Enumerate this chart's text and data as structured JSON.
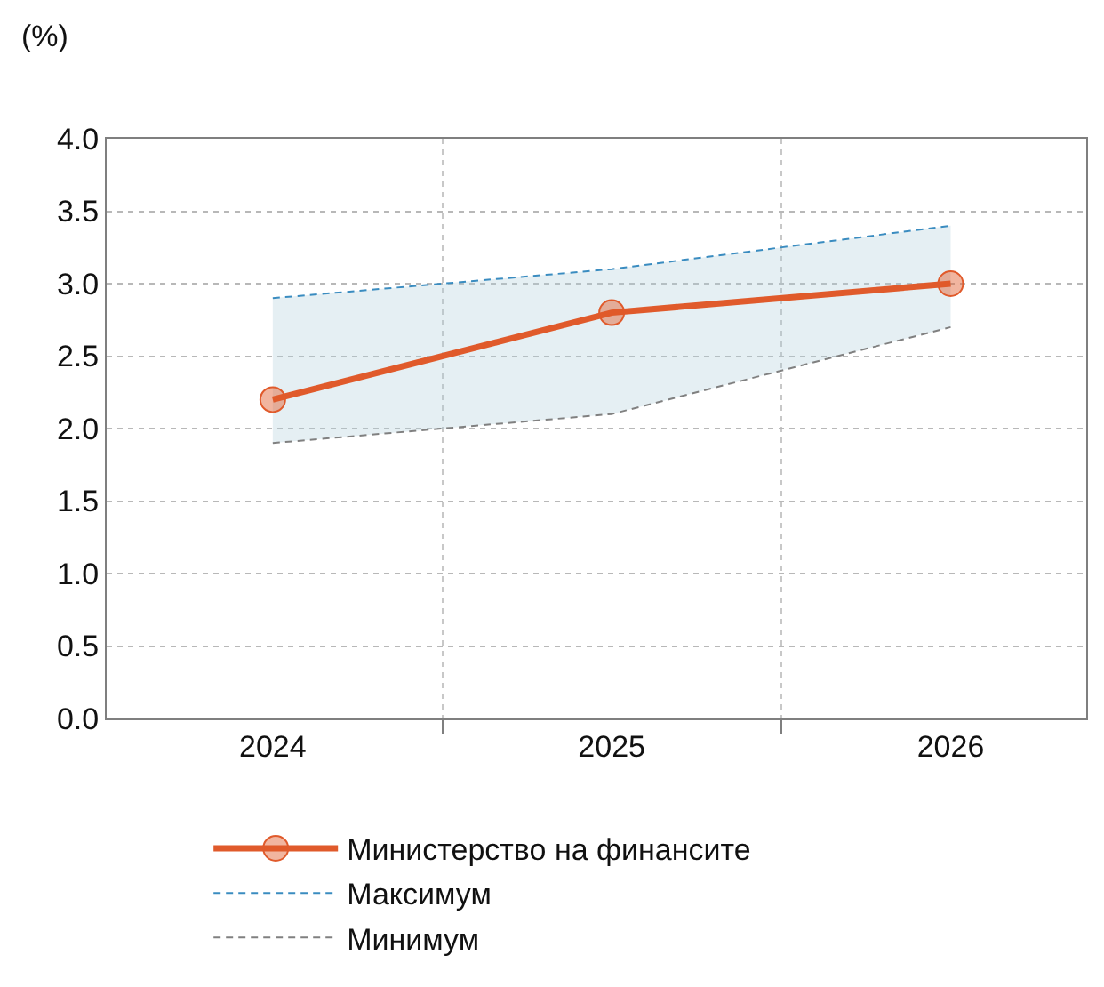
{
  "chart_data": {
    "type": "line",
    "ylabel": "(%)",
    "categories": [
      "2024",
      "2025",
      "2026"
    ],
    "series": [
      {
        "name": "Министерство на финансите",
        "color": "#e05a2b",
        "values": [
          2.2,
          2.8,
          3.0
        ],
        "lower": [
          1.9,
          2.1,
          2.7
        ],
        "upper": [
          2.9,
          3.1,
          3.4
        ],
        "marker": "circle",
        "line_style": "solid"
      },
      {
        "name": "Максимум",
        "color": "#3a8cc0",
        "values": [
          2.9,
          3.1,
          3.4
        ],
        "marker": "none",
        "line_style": "dashed"
      },
      {
        "name": "Минимум",
        "color": "#808080",
        "values": [
          1.9,
          2.1,
          2.7
        ],
        "marker": "none",
        "line_style": "dashed"
      }
    ],
    "ylim": [
      0,
      4.0
    ],
    "yticks": [
      {
        "value": 0,
        "label": "0.0"
      },
      {
        "value": 0.5,
        "label": "0.5"
      },
      {
        "value": 1,
        "label": "1.0"
      },
      {
        "value": 1.5,
        "label": "1.5"
      },
      {
        "value": 2,
        "label": "2.0"
      },
      {
        "value": 2.5,
        "label": "2.5"
      },
      {
        "value": 3,
        "label": "3.0"
      },
      {
        "value": 3.5,
        "label": "3.5"
      },
      {
        "value": 4,
        "label": "4.0"
      }
    ],
    "grid": true,
    "legend": "bottom"
  }
}
